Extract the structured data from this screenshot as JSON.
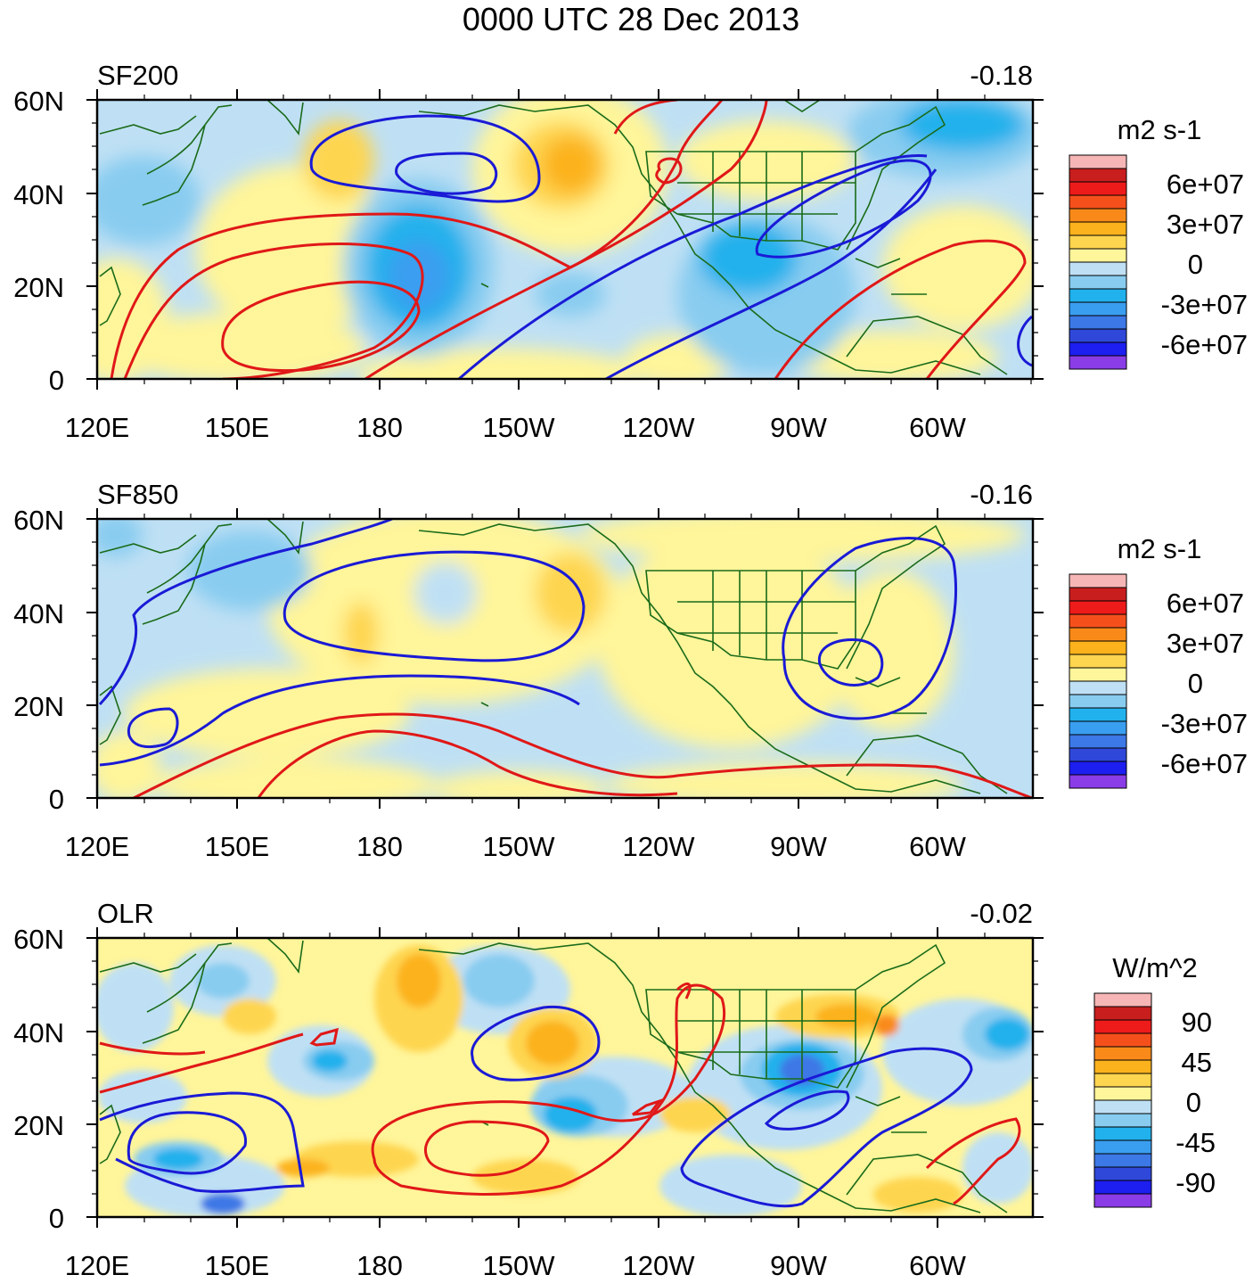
{
  "figure_title": "0000 UTC 28 Dec 2013",
  "chart_data": [
    {
      "type": "heatmap",
      "panel_label": "SF200",
      "corner_value": "-0.18",
      "colorbar_title": "m2 s-1",
      "colorbar_labels": [
        "6e+07",
        "3e+07",
        "0",
        "-3e+07",
        "-6e+07"
      ],
      "colorbar_colors": [
        "#f7b6b6",
        "#c81e1e",
        "#ee1b1b",
        "#f5501c",
        "#f98a1a",
        "#fcb21c",
        "#fed54f",
        "#fff59a",
        "#bfe0f4",
        "#88ccf0",
        "#21b1ec",
        "#3a9ef0",
        "#3c78e6",
        "#2f48da",
        "#1d1ef0",
        "#8a3ce6"
      ],
      "xlabel_ticks": [
        "120E",
        "150E",
        "180",
        "150W",
        "120W",
        "90W",
        "60W"
      ],
      "ylabel_ticks": [
        "60N",
        "40N",
        "20N",
        "0"
      ]
    },
    {
      "type": "heatmap",
      "panel_label": "SF850",
      "corner_value": "-0.16",
      "colorbar_title": "m2 s-1",
      "colorbar_labels": [
        "6e+07",
        "3e+07",
        "0",
        "-3e+07",
        "-6e+07"
      ],
      "colorbar_colors": [
        "#f7b6b6",
        "#c81e1e",
        "#ee1b1b",
        "#f5501c",
        "#f98a1a",
        "#fcb21c",
        "#fed54f",
        "#fff59a",
        "#bfe0f4",
        "#88ccf0",
        "#21b1ec",
        "#3a9ef0",
        "#3c78e6",
        "#2f48da",
        "#1d1ef0",
        "#8a3ce6"
      ],
      "xlabel_ticks": [
        "120E",
        "150E",
        "180",
        "150W",
        "120W",
        "90W",
        "60W"
      ],
      "ylabel_ticks": [
        "60N",
        "40N",
        "20N",
        "0"
      ]
    },
    {
      "type": "heatmap",
      "panel_label": "OLR",
      "corner_value": "-0.02",
      "colorbar_title": "W/m^2",
      "colorbar_labels": [
        "90",
        "45",
        "0",
        "-45",
        "-90"
      ],
      "colorbar_colors": [
        "#f7b6b6",
        "#c81e1e",
        "#ee1b1b",
        "#f5501c",
        "#f98a1a",
        "#fcb21c",
        "#fed54f",
        "#fff59a",
        "#bfe0f4",
        "#88ccf0",
        "#21b1ec",
        "#3a9ef0",
        "#3c78e6",
        "#2f48da",
        "#1d1ef0",
        "#8a3ce6"
      ],
      "xlabel_ticks": [
        "120E",
        "150E",
        "180",
        "150W",
        "120W",
        "90W",
        "60W"
      ],
      "ylabel_ticks": [
        "60N",
        "40N",
        "20N",
        "0"
      ]
    }
  ]
}
